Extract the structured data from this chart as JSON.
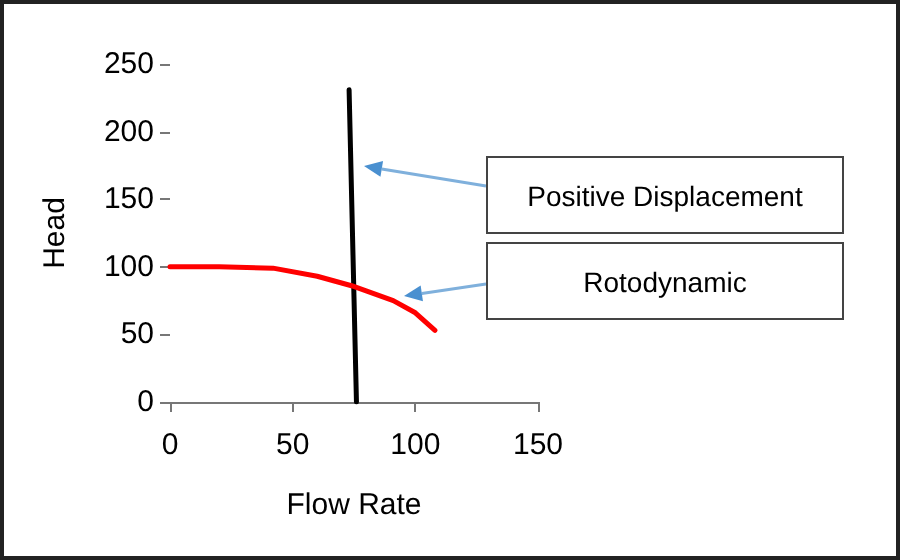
{
  "chart_data": {
    "type": "line",
    "xlabel": "Flow Rate",
    "ylabel": "Head",
    "xlim": [
      0,
      150
    ],
    "xticks": [
      0,
      50,
      100,
      150
    ],
    "ylim": [
      0,
      250
    ],
    "yticks": [
      0,
      50,
      100,
      150,
      200,
      250
    ],
    "grid": false,
    "marker": "none",
    "series": [
      {
        "color": "#000000",
        "x": [
          73,
          76
        ],
        "values": [
          231,
          0
        ]
      },
      {
        "color": "#ff0000",
        "x": [
          0,
          20,
          42,
          60,
          74,
          91,
          100,
          108
        ],
        "values": [
          100,
          100,
          99,
          93,
          86,
          75,
          66,
          53
        ]
      }
    ],
    "annotations": [
      "Positive Displacement",
      "Rotodynamic"
    ]
  }
}
